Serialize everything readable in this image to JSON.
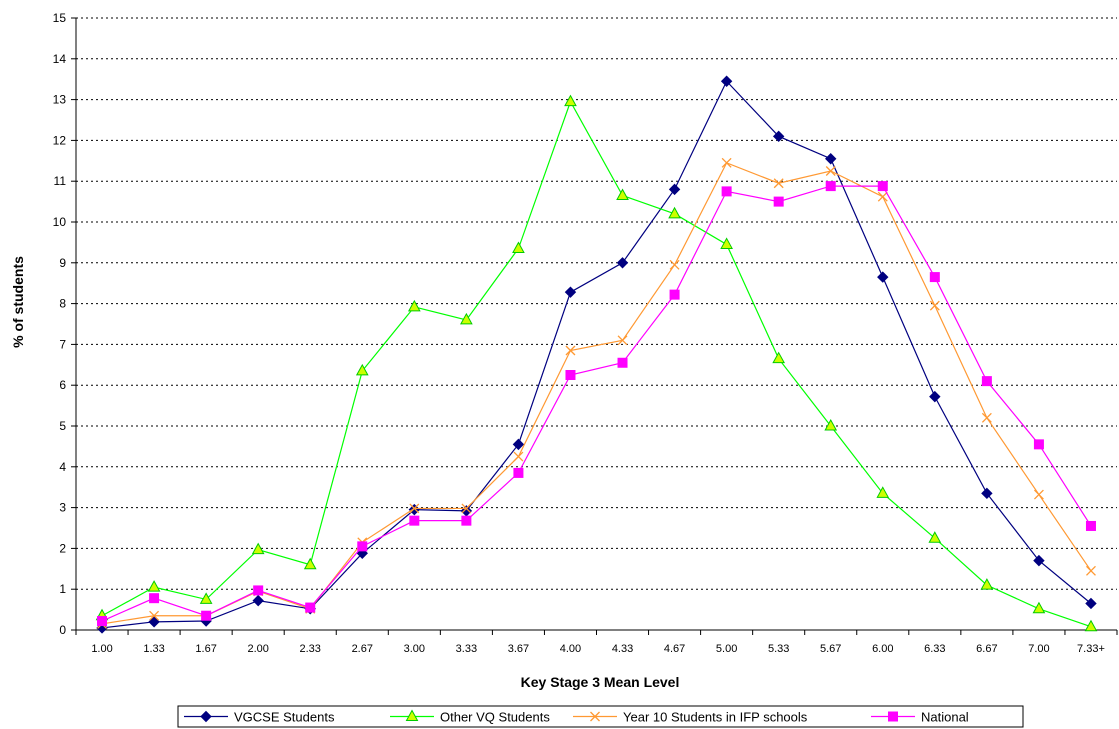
{
  "chart_data": {
    "type": "line",
    "title": "",
    "xlabel": "Key Stage 3 Mean Level",
    "ylabel": "% of students",
    "ylim": [
      0,
      15
    ],
    "yticks": [
      "0",
      "1",
      "2",
      "3",
      "4",
      "5",
      "6",
      "7",
      "8",
      "9",
      "10",
      "11",
      "12",
      "13",
      "14",
      "15"
    ],
    "grid": "horizontal dotted",
    "legend_position": "bottom",
    "categories": [
      "1.00",
      "1.33",
      "1.67",
      "2.00",
      "2.33",
      "2.67",
      "3.00",
      "3.33",
      "3.67",
      "4.00",
      "4.33",
      "4.67",
      "5.00",
      "5.33",
      "5.67",
      "6.00",
      "6.33",
      "6.67",
      "7.00",
      "7.33+"
    ],
    "series": [
      {
        "name": "VGCSE Students",
        "color": "#000080",
        "marker": "diamond",
        "values": [
          0.05,
          0.2,
          0.22,
          0.72,
          0.52,
          1.88,
          2.95,
          2.92,
          4.55,
          8.28,
          9.0,
          10.8,
          13.45,
          12.1,
          11.55,
          8.65,
          5.72,
          3.35,
          1.7,
          0.65
        ]
      },
      {
        "name": "Other VQ Students",
        "color": "#00FF00",
        "marker": "triangle",
        "values": [
          0.35,
          1.05,
          0.75,
          1.97,
          1.6,
          6.35,
          7.92,
          7.6,
          9.35,
          12.95,
          10.65,
          10.2,
          9.45,
          6.65,
          5.0,
          3.35,
          2.25,
          1.1,
          0.52,
          0.08
        ]
      },
      {
        "name": "Year 10 Students in IFP schools",
        "color": "#FF9933",
        "marker": "x",
        "values": [
          0.15,
          0.35,
          0.35,
          0.95,
          0.52,
          2.15,
          2.98,
          2.98,
          4.25,
          6.85,
          7.1,
          8.95,
          11.45,
          10.95,
          11.25,
          10.62,
          7.95,
          5.2,
          3.32,
          1.45
        ]
      },
      {
        "name": "National",
        "color": "#FF00FF",
        "marker": "square",
        "values": [
          0.22,
          0.78,
          0.35,
          0.97,
          0.55,
          2.05,
          2.68,
          2.68,
          3.85,
          6.25,
          6.55,
          8.22,
          10.75,
          10.5,
          10.88,
          10.88,
          8.65,
          6.1,
          4.55,
          2.55
        ]
      }
    ]
  }
}
